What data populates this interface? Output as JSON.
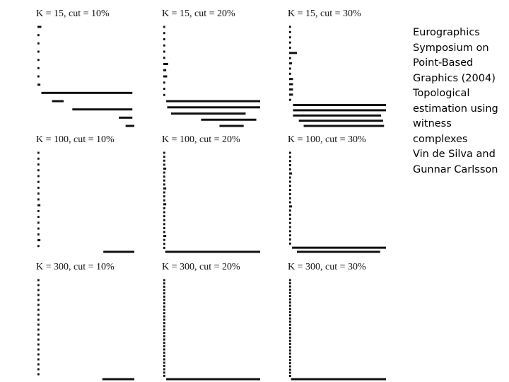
{
  "caption": {
    "lines": [
      "Eurographics",
      "Symposium on",
      "Point-Based",
      "Graphics (2004)",
      "Topological",
      "estimation using",
      "witness",
      "complexes",
      "Vin de Silva and",
      "Gunnar Carlsson"
    ]
  },
  "chart_data": {
    "type": "barcode",
    "grid": {
      "rows": 3,
      "cols": 3
    },
    "panels": [
      {
        "title": "K = 15, cut = 10%",
        "row": 0,
        "col": 0,
        "bars": [
          [
            0,
            0.04
          ],
          [
            0,
            0.02
          ],
          [
            0,
            0.02
          ],
          [
            0,
            0.02
          ],
          [
            0,
            0.02
          ],
          [
            0,
            0.02
          ],
          [
            0,
            0.02
          ],
          [
            0,
            0.03
          ],
          [
            0.04,
            0.98
          ],
          [
            0.15,
            0.27
          ],
          [
            0.36,
            0.98
          ],
          [
            0.84,
            0.98
          ],
          [
            0.91,
            1.0
          ]
        ]
      },
      {
        "title": "K = 15, cut = 20%",
        "row": 0,
        "col": 1,
        "bars": [
          [
            0,
            0.02
          ],
          [
            0,
            0.02
          ],
          [
            0,
            0.02
          ],
          [
            0,
            0.02
          ],
          [
            0,
            0.02
          ],
          [
            0,
            0.02
          ],
          [
            0,
            0.05
          ],
          [
            0,
            0.03
          ],
          [
            0,
            0.04
          ],
          [
            0,
            0.02
          ],
          [
            0,
            0.02
          ],
          [
            0,
            0.02
          ],
          [
            0.03,
            1.0
          ],
          [
            0.04,
            1.0
          ],
          [
            0.08,
            0.85
          ],
          [
            0.39,
            0.96
          ],
          [
            0.58,
            0.83
          ]
        ]
      },
      {
        "title": "K = 15, cut = 30%",
        "row": 0,
        "col": 2,
        "bars": [
          [
            0,
            0.02
          ],
          [
            0,
            0.02
          ],
          [
            0,
            0.02
          ],
          [
            0,
            0.02
          ],
          [
            0,
            0.02
          ],
          [
            0,
            0.08
          ],
          [
            0,
            0.02
          ],
          [
            0,
            0.03
          ],
          [
            0,
            0.02
          ],
          [
            0,
            0.02
          ],
          [
            0,
            0.04
          ],
          [
            0,
            0.04
          ],
          [
            0,
            0.04
          ],
          [
            0,
            0.04
          ],
          [
            0,
            0.02
          ],
          [
            0.04,
            1.0
          ],
          [
            0.04,
            1.0
          ],
          [
            0.04,
            0.95
          ],
          [
            0.1,
            0.97
          ],
          [
            0.15,
            0.98
          ]
        ]
      },
      {
        "title": "K = 100, cut = 10%",
        "row": 1,
        "col": 0,
        "bars": [
          [
            0,
            0.02
          ],
          [
            0,
            0.02
          ],
          [
            0,
            0.02
          ],
          [
            0,
            0.02
          ],
          [
            0,
            0.02
          ],
          [
            0,
            0.02
          ],
          [
            0,
            0.02
          ],
          [
            0,
            0.02
          ],
          [
            0,
            0.02
          ],
          [
            0,
            0.03
          ],
          [
            0,
            0.02
          ],
          [
            0,
            0.02
          ],
          [
            0,
            0.02
          ],
          [
            0,
            0.02
          ],
          [
            0,
            0.02
          ],
          [
            0,
            0.03
          ],
          [
            0,
            0.02
          ],
          [
            0.68,
            1.0
          ]
        ]
      },
      {
        "title": "K = 100, cut = 20%",
        "row": 1,
        "col": 1,
        "bars": [
          [
            0,
            0.02
          ],
          [
            0,
            0.02
          ],
          [
            0,
            0.02
          ],
          [
            0,
            0.02
          ],
          [
            0,
            0.03
          ],
          [
            0,
            0.02
          ],
          [
            0,
            0.02
          ],
          [
            0,
            0.02
          ],
          [
            0,
            0.02
          ],
          [
            0,
            0.03
          ],
          [
            0,
            0.02
          ],
          [
            0,
            0.02
          ],
          [
            0,
            0.02
          ],
          [
            0,
            0.03
          ],
          [
            0,
            0.02
          ],
          [
            0,
            0.02
          ],
          [
            0,
            0.02
          ],
          [
            0,
            0.02
          ],
          [
            0,
            0.02
          ],
          [
            0,
            0.02
          ],
          [
            0,
            0.02
          ],
          [
            0,
            0.03
          ],
          [
            0,
            0.02
          ],
          [
            0,
            0.02
          ],
          [
            0,
            0.02
          ],
          [
            0.02,
            1.0
          ]
        ]
      },
      {
        "title": "K = 100, cut = 30%",
        "row": 1,
        "col": 2,
        "bars": [
          [
            0,
            0.02
          ],
          [
            0,
            0.02
          ],
          [
            0,
            0.02
          ],
          [
            0,
            0.02
          ],
          [
            0,
            0.02
          ],
          [
            0,
            0.03
          ],
          [
            0,
            0.02
          ],
          [
            0,
            0.02
          ],
          [
            0,
            0.02
          ],
          [
            0,
            0.02
          ],
          [
            0,
            0.02
          ],
          [
            0,
            0.02
          ],
          [
            0,
            0.02
          ],
          [
            0,
            0.03
          ],
          [
            0,
            0.02
          ],
          [
            0,
            0.02
          ],
          [
            0,
            0.02
          ],
          [
            0,
            0.02
          ],
          [
            0,
            0.02
          ],
          [
            0,
            0.02
          ],
          [
            0,
            0.02
          ],
          [
            0,
            0.02
          ],
          [
            0,
            0.02
          ],
          [
            0.03,
            1.0
          ],
          [
            0.08,
            0.94
          ]
        ]
      },
      {
        "title": "K = 300, cut = 10%",
        "row": 2,
        "col": 0,
        "bars": [
          [
            0,
            0.02
          ],
          [
            0,
            0.02
          ],
          [
            0,
            0.02
          ],
          [
            0,
            0.02
          ],
          [
            0,
            0.02
          ],
          [
            0,
            0.02
          ],
          [
            0,
            0.02
          ],
          [
            0,
            0.02
          ],
          [
            0,
            0.02
          ],
          [
            0,
            0.02
          ],
          [
            0,
            0.02
          ],
          [
            0,
            0.02
          ],
          [
            0,
            0.02
          ],
          [
            0,
            0.02
          ],
          [
            0,
            0.02
          ],
          [
            0,
            0.02
          ],
          [
            0,
            0.02
          ],
          [
            0,
            0.02
          ],
          [
            0,
            0.02
          ],
          [
            0,
            0.02
          ],
          [
            0.67,
            1.0
          ]
        ]
      },
      {
        "title": "K = 300, cut = 20%",
        "row": 2,
        "col": 1,
        "bars": [
          [
            0,
            0.02
          ],
          [
            0,
            0.02
          ],
          [
            0,
            0.02
          ],
          [
            0,
            0.02
          ],
          [
            0,
            0.02
          ],
          [
            0,
            0.02
          ],
          [
            0,
            0.02
          ],
          [
            0,
            0.02
          ],
          [
            0,
            0.02
          ],
          [
            0,
            0.02
          ],
          [
            0,
            0.02
          ],
          [
            0,
            0.02
          ],
          [
            0,
            0.02
          ],
          [
            0,
            0.02
          ],
          [
            0,
            0.02
          ],
          [
            0,
            0.02
          ],
          [
            0,
            0.02
          ],
          [
            0,
            0.02
          ],
          [
            0,
            0.02
          ],
          [
            0,
            0.02
          ],
          [
            0,
            0.02
          ],
          [
            0,
            0.02
          ],
          [
            0,
            0.02
          ],
          [
            0,
            0.02
          ],
          [
            0,
            0.02
          ],
          [
            0,
            0.02
          ],
          [
            0,
            0.02
          ],
          [
            0,
            0.02
          ],
          [
            0,
            0.02
          ],
          [
            0,
            0.02
          ],
          [
            0.03,
            1.0
          ]
        ]
      },
      {
        "title": "K = 300, cut = 30%",
        "row": 2,
        "col": 2,
        "bars": [
          [
            0,
            0.02
          ],
          [
            0,
            0.02
          ],
          [
            0,
            0.02
          ],
          [
            0,
            0.02
          ],
          [
            0,
            0.02
          ],
          [
            0,
            0.02
          ],
          [
            0,
            0.02
          ],
          [
            0,
            0.02
          ],
          [
            0,
            0.02
          ],
          [
            0,
            0.02
          ],
          [
            0,
            0.02
          ],
          [
            0,
            0.02
          ],
          [
            0,
            0.02
          ],
          [
            0,
            0.02
          ],
          [
            0,
            0.02
          ],
          [
            0,
            0.02
          ],
          [
            0,
            0.02
          ],
          [
            0,
            0.02
          ],
          [
            0,
            0.02
          ],
          [
            0,
            0.02
          ],
          [
            0,
            0.02
          ],
          [
            0,
            0.02
          ],
          [
            0,
            0.02
          ],
          [
            0,
            0.02
          ],
          [
            0,
            0.02
          ],
          [
            0,
            0.02
          ],
          [
            0,
            0.02
          ],
          [
            0,
            0.02
          ],
          [
            0,
            0.02
          ],
          [
            0,
            0.02
          ],
          [
            0,
            0.02
          ],
          [
            0.02,
            1.0
          ]
        ]
      }
    ]
  }
}
